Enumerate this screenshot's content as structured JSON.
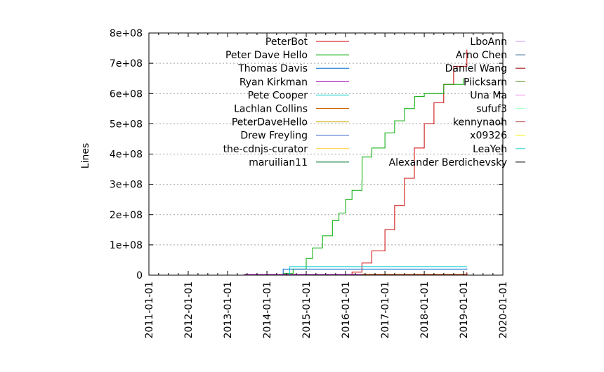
{
  "chart_data": {
    "type": "line",
    "title": "",
    "xlabel": "",
    "ylabel": "Lines",
    "x_scale": "date",
    "xlim": [
      "2011-01-01",
      "2020-01-01"
    ],
    "ylim": [
      0,
      800000000
    ],
    "x_ticks": [
      "2011-01-01",
      "2012-01-01",
      "2013-01-01",
      "2014-01-01",
      "2015-01-01",
      "2016-01-01",
      "2017-01-01",
      "2018-01-01",
      "2019-01-01",
      "2020-01-01"
    ],
    "y_ticks": [
      {
        "value": 0,
        "label": "0"
      },
      {
        "value": 100000000,
        "label": "1e+08"
      },
      {
        "value": 200000000,
        "label": "2e+08"
      },
      {
        "value": 300000000,
        "label": "3e+08"
      },
      {
        "value": 400000000,
        "label": "4e+08"
      },
      {
        "value": 500000000,
        "label": "5e+08"
      },
      {
        "value": 600000000,
        "label": "6e+08"
      },
      {
        "value": 700000000,
        "label": "7e+08"
      },
      {
        "value": 800000000,
        "label": "8e+08"
      }
    ],
    "grid": "horizontal dotted",
    "legend_position": "top, two columns",
    "series": [
      {
        "name": "PeterBot",
        "color": "#cc0000",
        "points": [
          [
            "2016-01-20",
            0
          ],
          [
            "2016-03-01",
            10000000
          ],
          [
            "2016-06-01",
            40000000
          ],
          [
            "2016-09-01",
            80000000
          ],
          [
            "2017-01-01",
            150000000
          ],
          [
            "2017-04-01",
            230000000
          ],
          [
            "2017-07-01",
            320000000
          ],
          [
            "2017-10-01",
            420000000
          ],
          [
            "2018-01-01",
            500000000
          ],
          [
            "2018-04-01",
            570000000
          ],
          [
            "2018-07-01",
            630000000
          ],
          [
            "2018-10-01",
            690000000
          ],
          [
            "2019-02-01",
            745000000
          ]
        ]
      },
      {
        "name": "Peter Dave Hello",
        "color": "#00aa00",
        "points": [
          [
            "2014-03-01",
            0
          ],
          [
            "2014-06-01",
            5000000
          ],
          [
            "2014-09-01",
            20000000
          ],
          [
            "2015-01-01",
            55000000
          ],
          [
            "2015-03-01",
            90000000
          ],
          [
            "2015-06-01",
            130000000
          ],
          [
            "2015-09-01",
            180000000
          ],
          [
            "2015-11-01",
            205000000
          ],
          [
            "2016-01-01",
            250000000
          ],
          [
            "2016-03-01",
            280000000
          ],
          [
            "2016-06-01",
            310000000
          ],
          [
            "2016-06-03",
            390000000
          ],
          [
            "2016-09-01",
            420000000
          ],
          [
            "2017-01-01",
            470000000
          ],
          [
            "2017-04-01",
            510000000
          ],
          [
            "2017-07-01",
            550000000
          ],
          [
            "2017-10-01",
            560000000
          ],
          [
            "2017-10-03",
            590000000
          ],
          [
            "2018-01-01",
            600000000
          ],
          [
            "2018-07-01",
            630000000
          ],
          [
            "2019-01-01",
            650000000
          ]
        ]
      },
      {
        "name": "Thomas Davis",
        "color": "#0066cc",
        "points": [
          [
            "2014-01-01",
            0
          ],
          [
            "2014-06-01",
            20000000
          ],
          [
            "2019-02-01",
            22000000
          ]
        ]
      },
      {
        "name": "Ryan Kirkman",
        "color": "#9900aa",
        "points": [
          [
            "2013-06-01",
            2000000
          ],
          [
            "2019-02-01",
            3000000
          ]
        ]
      },
      {
        "name": "Pete Cooper",
        "color": "#00cccc",
        "points": [
          [
            "2014-04-01",
            0
          ],
          [
            "2014-08-01",
            28000000
          ],
          [
            "2019-02-01",
            28000000
          ]
        ]
      },
      {
        "name": "Lachlan Collins",
        "color": "#cc6600",
        "points": [
          [
            "2014-06-01",
            0
          ],
          [
            "2016-06-01",
            3000000
          ],
          [
            "2019-02-01",
            4000000
          ]
        ]
      },
      {
        "name": "PeterDaveHello",
        "color": "#ccaa00",
        "points": [
          [
            "2016-06-01",
            0
          ],
          [
            "2019-02-01",
            5000000
          ]
        ]
      },
      {
        "name": "Drew Freyling",
        "color": "#3366cc",
        "points": [
          [
            "2016-06-01",
            0
          ],
          [
            "2019-02-01",
            6000000
          ]
        ]
      },
      {
        "name": "the-cdnjs-curator",
        "color": "#ffcc33",
        "points": [
          [
            "2017-01-01",
            0
          ],
          [
            "2019-02-01",
            3000000
          ]
        ]
      },
      {
        "name": "maruilian11",
        "color": "#007733",
        "points": [
          [
            "2016-01-01",
            0
          ],
          [
            "2019-02-01",
            7000000
          ]
        ]
      },
      {
        "name": "LboAnn",
        "color": "#cc99ff",
        "points": [
          [
            "2016-01-01",
            0
          ],
          [
            "2019-02-01",
            1000000
          ]
        ]
      },
      {
        "name": "Arno Chen",
        "color": "#336699",
        "points": [
          [
            "2016-06-01",
            0
          ],
          [
            "2019-02-01",
            2000000
          ]
        ]
      },
      {
        "name": "Daniel Wang",
        "color": "#990000",
        "points": [
          [
            "2016-06-01",
            0
          ],
          [
            "2019-02-01",
            9000000
          ]
        ]
      },
      {
        "name": "Piicksarn",
        "color": "#669933",
        "points": [
          [
            "2017-01-01",
            0
          ],
          [
            "2019-02-01",
            2000000
          ]
        ]
      },
      {
        "name": "Una Ma",
        "color": "#ee88ee",
        "points": [
          [
            "2017-01-01",
            0
          ],
          [
            "2019-02-01",
            1000000
          ]
        ]
      },
      {
        "name": "sufuf3",
        "color": "#aaffcc",
        "points": [
          [
            "2017-06-01",
            0
          ],
          [
            "2019-02-01",
            1000000
          ]
        ]
      },
      {
        "name": "kennynaoh",
        "color": "#aa3333",
        "points": [
          [
            "2017-06-01",
            0
          ],
          [
            "2019-02-01",
            2000000
          ]
        ]
      },
      {
        "name": "x09326",
        "color": "#eeee00",
        "points": [
          [
            "2017-06-01",
            0
          ],
          [
            "2019-02-01",
            1000000
          ]
        ]
      },
      {
        "name": "LeaYeh",
        "color": "#33cccc",
        "points": [
          [
            "2018-01-01",
            0
          ],
          [
            "2019-02-01",
            1000000
          ]
        ]
      },
      {
        "name": "Alexander Berdichevsky",
        "color": "#000000",
        "points": [
          [
            "2018-01-01",
            0
          ],
          [
            "2019-02-01",
            1000000
          ]
        ]
      }
    ]
  }
}
